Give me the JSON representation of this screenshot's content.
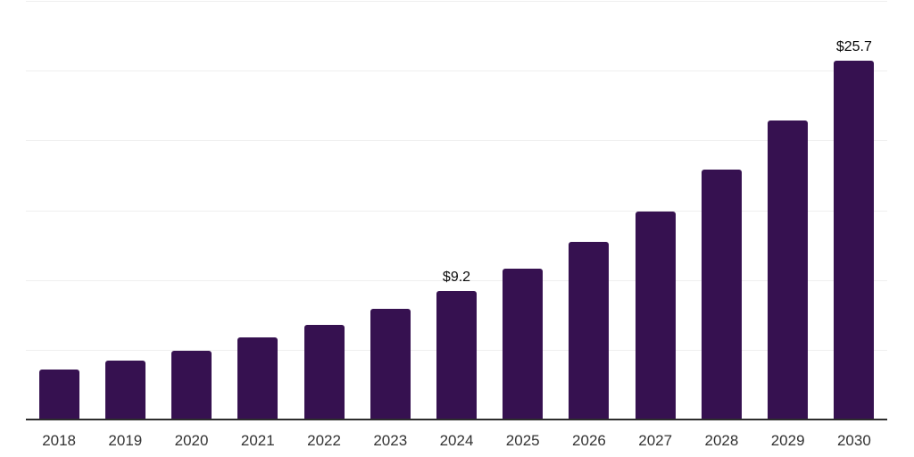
{
  "chart_data": {
    "type": "bar",
    "title": "",
    "xlabel": "",
    "ylabel": "",
    "categories": [
      "2018",
      "2019",
      "2020",
      "2021",
      "2022",
      "2023",
      "2024",
      "2025",
      "2026",
      "2027",
      "2028",
      "2029",
      "2030"
    ],
    "values": [
      3.6,
      4.2,
      4.9,
      5.9,
      6.8,
      7.9,
      9.2,
      10.8,
      12.7,
      14.9,
      17.9,
      21.4,
      25.7
    ],
    "value_labels": [
      "",
      "",
      "",
      "",
      "",
      "",
      "$9.2",
      "",
      "",
      "",
      "",
      "",
      "$25.7"
    ],
    "ylim": [
      0,
      30
    ],
    "grid_step": 5,
    "grid": "horizontal-only",
    "legend": "none",
    "colors": {
      "bar": "#361150",
      "gridline": "#efefef",
      "axis_line": "#2d2d2d",
      "tick_label": "#333333",
      "value_label": "#0a0a0a",
      "background": "#ffffff"
    }
  }
}
